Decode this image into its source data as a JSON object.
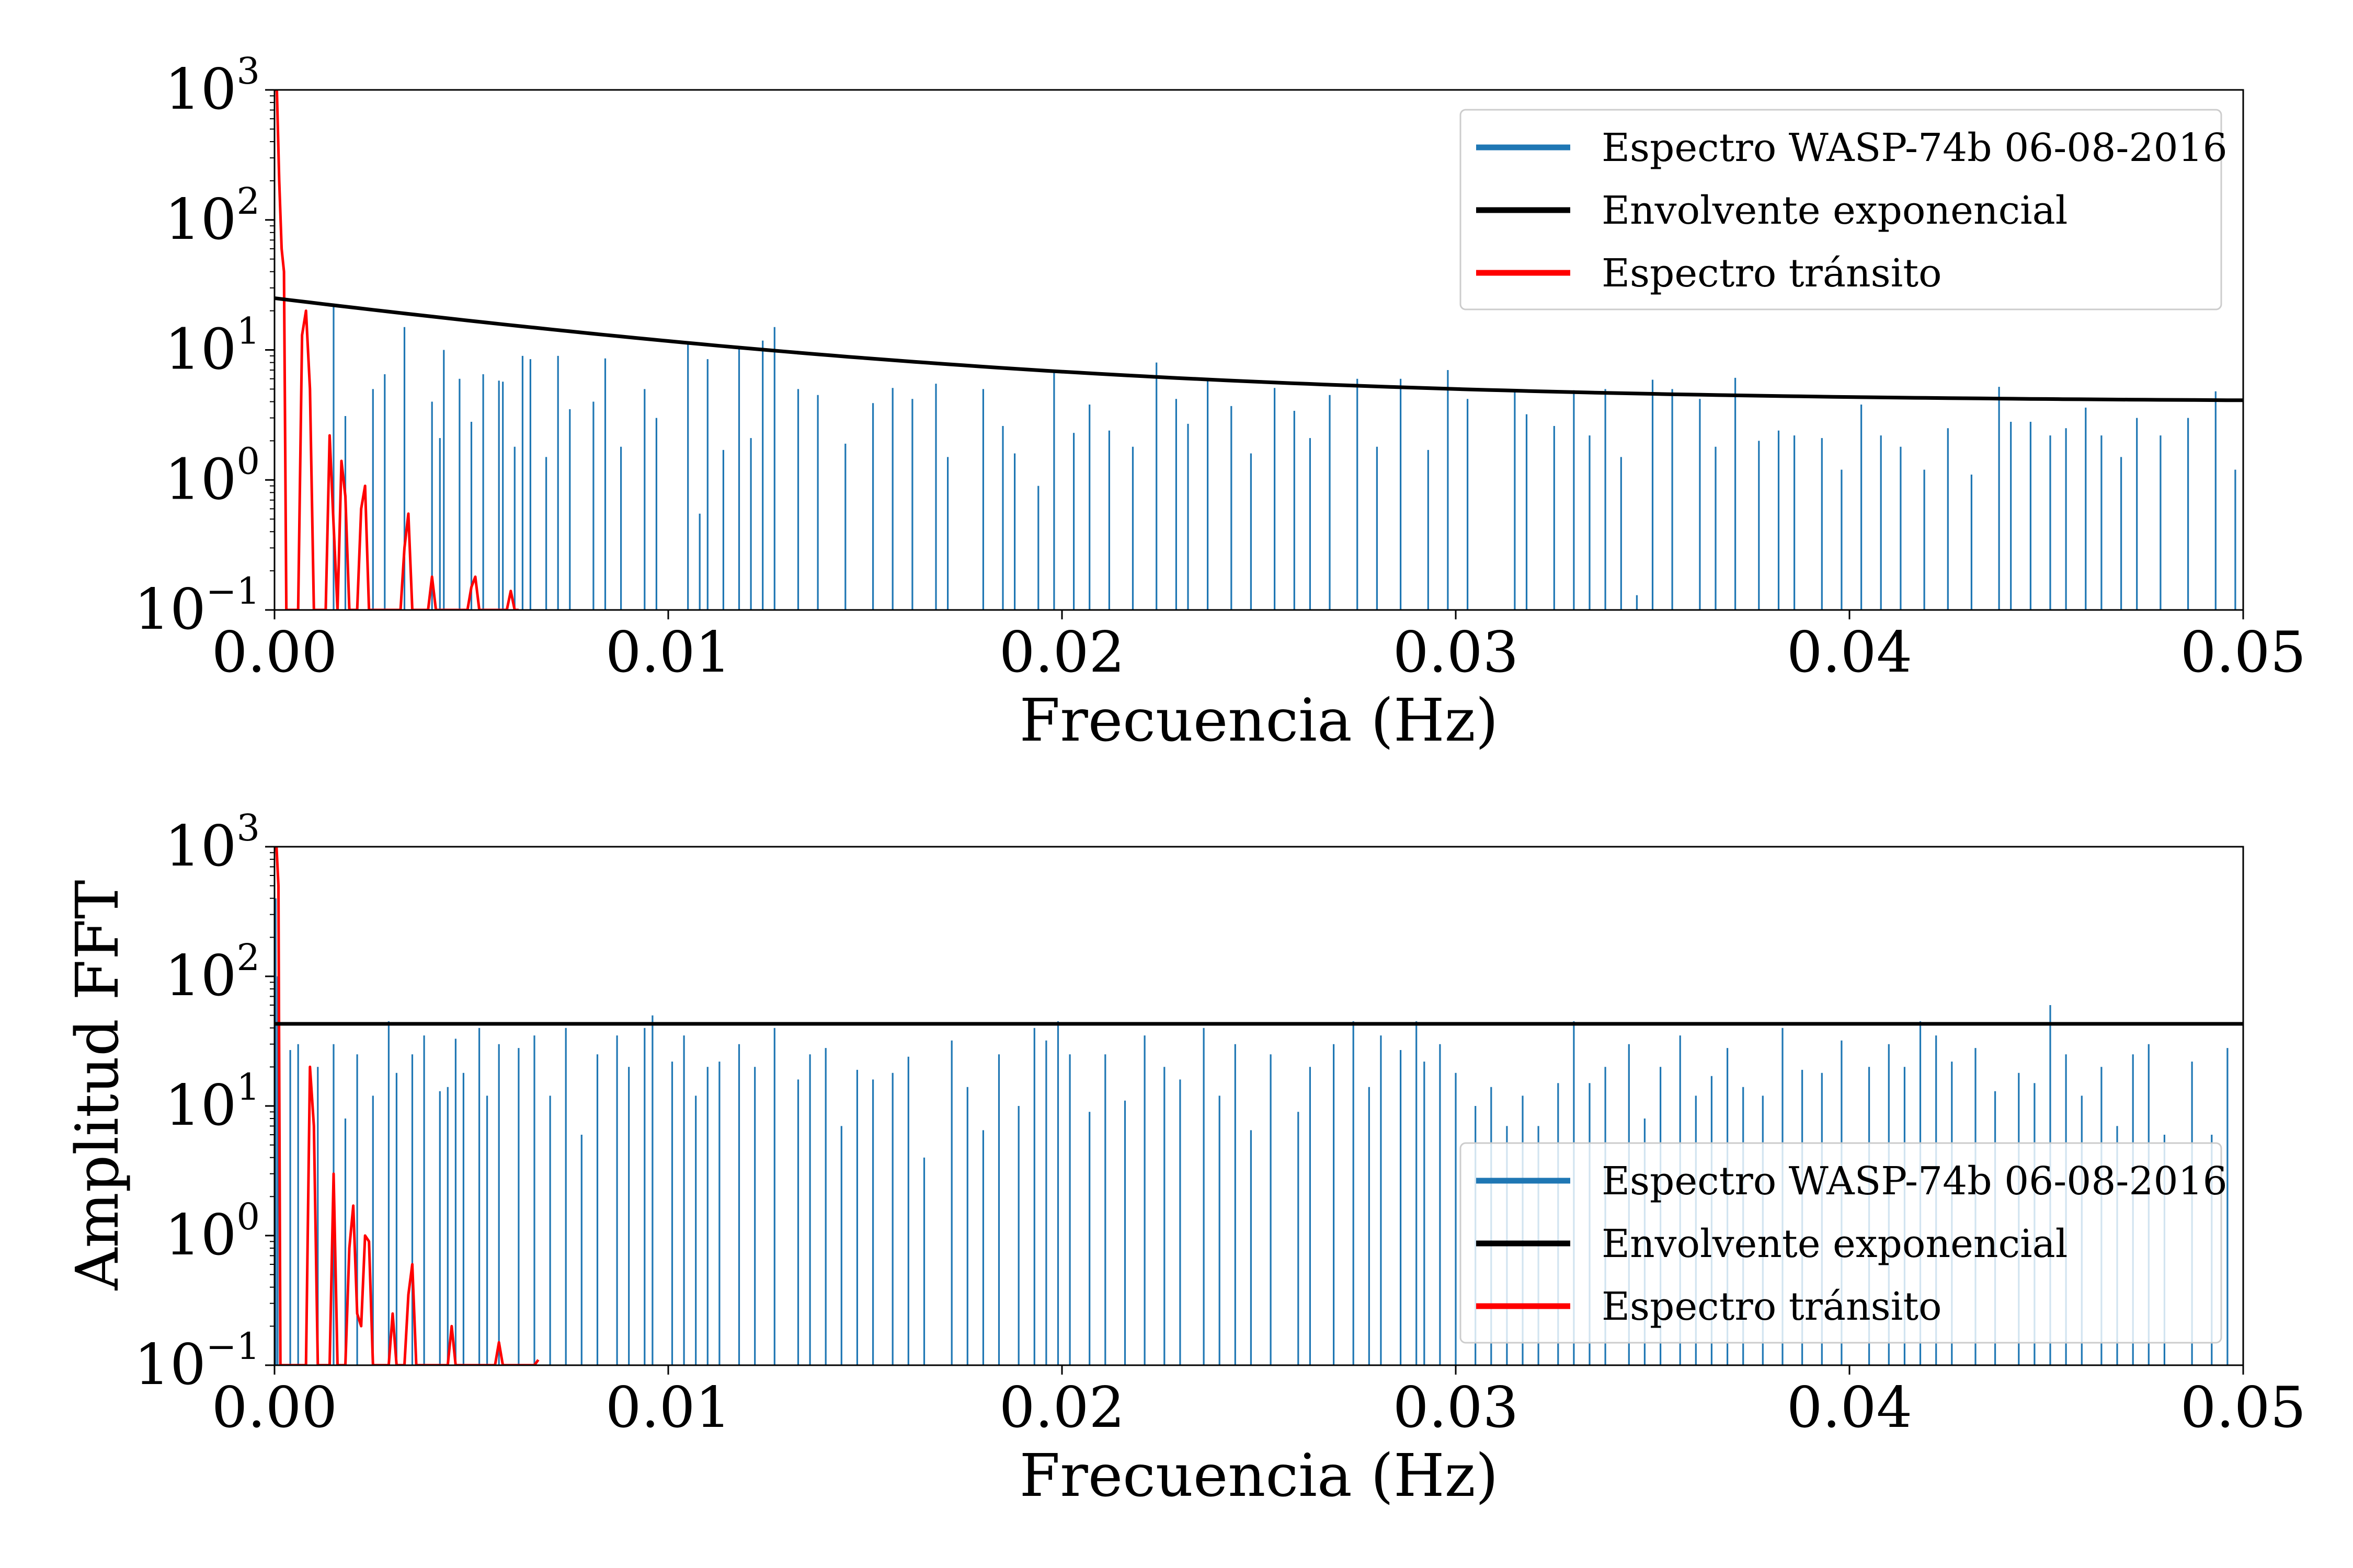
{
  "chart_data": [
    {
      "type": "line",
      "xlabel": "Frecuencia (Hz)",
      "ylabel": "",
      "xlim": [
        0,
        0.05
      ],
      "ylim": [
        0.1,
        1000
      ],
      "yscale": "log",
      "xticks": [
        {
          "value": 0.0,
          "label": "0.00"
        },
        {
          "value": 0.01,
          "label": "0.01"
        },
        {
          "value": 0.02,
          "label": "0.02"
        },
        {
          "value": 0.03,
          "label": "0.03"
        },
        {
          "value": 0.04,
          "label": "0.04"
        },
        {
          "value": 0.05,
          "label": "0.05"
        }
      ],
      "yticks": [
        {
          "value": 0.1,
          "base": "10",
          "exp": "−1"
        },
        {
          "value": 1,
          "base": "10",
          "exp": "0"
        },
        {
          "value": 10,
          "base": "10",
          "exp": "1"
        },
        {
          "value": 100,
          "base": "10",
          "exp": "2"
        },
        {
          "value": 1000,
          "base": "10",
          "exp": "3"
        }
      ],
      "legend": {
        "placement": "top-right",
        "semi_transparent": false
      },
      "envelope": {
        "type": "exponential",
        "y0": 25,
        "y_end": 4.1,
        "decay": 0.2
      },
      "series": [
        {
          "name": "Espectro WASP-74b   06-08-2016",
          "color": "#1f77b4",
          "kind": "spikes",
          "x": [
            0.0015,
            0.0018,
            0.0025,
            0.0028,
            0.0033,
            0.004,
            0.0042,
            0.0043,
            0.0047,
            0.005,
            0.0053,
            0.0057,
            0.0058,
            0.0061,
            0.0063,
            0.0065,
            0.0069,
            0.0072,
            0.0075,
            0.0081,
            0.0084,
            0.0088,
            0.0094,
            0.0097,
            0.0105,
            0.0108,
            0.011,
            0.0114,
            0.0118,
            0.0121,
            0.0124,
            0.0127,
            0.0133,
            0.0138,
            0.0145,
            0.0152,
            0.0157,
            0.0162,
            0.0168,
            0.0171,
            0.018,
            0.0185,
            0.0188,
            0.0194,
            0.0198,
            0.0203,
            0.0207,
            0.0212,
            0.0218,
            0.0224,
            0.0229,
            0.0232,
            0.0237,
            0.0243,
            0.0248,
            0.0254,
            0.0259,
            0.0263,
            0.0268,
            0.0275,
            0.028,
            0.0286,
            0.0293,
            0.0298,
            0.0303,
            0.0315,
            0.0318,
            0.0325,
            0.033,
            0.0334,
            0.0338,
            0.0342,
            0.0346,
            0.035,
            0.0355,
            0.0362,
            0.0366,
            0.0371,
            0.0377,
            0.0382,
            0.0386,
            0.0393,
            0.0398,
            0.0403,
            0.0408,
            0.0413,
            0.0419,
            0.0425,
            0.0431,
            0.0438,
            0.0441,
            0.0446,
            0.0451,
            0.0455,
            0.046,
            0.0464,
            0.0469,
            0.0473,
            0.0479,
            0.0486,
            0.0493,
            0.0498
          ],
          "values": [
            22,
            3.1,
            5,
            6.5,
            15,
            4,
            2.1,
            10,
            6,
            2.8,
            6.5,
            5.8,
            5.7,
            1.8,
            9,
            8.5,
            1.5,
            9,
            3.5,
            4,
            8.6,
            1.8,
            5,
            3,
            11,
            0.55,
            8.5,
            1.7,
            10.5,
            2.1,
            11.8,
            15,
            5,
            4.5,
            1.9,
            3.9,
            5.1,
            4.2,
            5.5,
            1.5,
            5,
            2.6,
            1.6,
            0.9,
            7,
            2.3,
            3.8,
            2.4,
            1.8,
            8,
            4.2,
            2.7,
            6.1,
            3.7,
            1.6,
            5.1,
            3.4,
            2.1,
            4.5,
            6,
            1.8,
            6,
            1.7,
            7,
            4.2,
            4.8,
            3.2,
            2.6,
            4.9,
            2.2,
            5,
            1.5,
            0.13,
            5.9,
            5,
            4.2,
            1.8,
            6.1,
            2,
            2.4,
            2.2,
            2.1,
            1.2,
            3.8,
            2.2,
            1.8,
            1.2,
            2.5,
            1.1,
            5.2,
            2.8,
            2.8,
            2.2,
            2.5,
            3.6,
            2.2,
            1.5,
            3,
            2.2,
            3,
            4.8,
            1.2
          ]
        },
        {
          "name": "Envolvente exponencial",
          "color": "#000000",
          "kind": "envelope"
        },
        {
          "name": "Espectro tránsito",
          "color": "#ff0000",
          "kind": "line",
          "x": [
            0.0,
            6e-05,
            0.00012,
            0.00018,
            0.00024,
            0.0003,
            0.0004,
            0.0005,
            0.0006,
            0.0007,
            0.0008,
            0.0009,
            0.001,
            0.0011,
            0.0012,
            0.0013,
            0.0014,
            0.0015,
            0.0016,
            0.0017,
            0.0018,
            0.0019,
            0.002,
            0.0021,
            0.0022,
            0.0023,
            0.0024,
            0.0025,
            0.0026,
            0.0027,
            0.0028,
            0.0029,
            0.003,
            0.0031,
            0.0032,
            0.0033,
            0.0034,
            0.0035,
            0.0036,
            0.0037,
            0.0038,
            0.0039,
            0.004,
            0.0041,
            0.0042,
            0.0043,
            0.0044,
            0.0045,
            0.0046,
            0.0047,
            0.0048,
            0.0049,
            0.005,
            0.0051,
            0.0052,
            0.0053,
            0.0054,
            0.0055,
            0.0056,
            0.0057,
            0.0058,
            0.0059,
            0.006,
            0.0061,
            0.0062
          ],
          "values": [
            1000,
            1000,
            200,
            60,
            40,
            0.1,
            0.1,
            0.1,
            0.1,
            13,
            20,
            5,
            0.1,
            0.1,
            0.1,
            0.1,
            2.2,
            0.45,
            0.1,
            1.4,
            0.75,
            0.1,
            0.1,
            0.1,
            0.6,
            0.9,
            0.1,
            0.1,
            0.1,
            0.1,
            0.1,
            0.1,
            0.1,
            0.1,
            0.1,
            0.3,
            0.55,
            0.1,
            0.1,
            0.1,
            0.1,
            0.1,
            0.18,
            0.1,
            0.1,
            0.1,
            0.1,
            0.1,
            0.1,
            0.1,
            0.1,
            0.1,
            0.15,
            0.18,
            0.1,
            0.1,
            0.1,
            0.1,
            0.1,
            0.1,
            0.1,
            0.1,
            0.14,
            0.1,
            0.1
          ]
        }
      ]
    },
    {
      "type": "line",
      "xlabel": "Frecuencia (Hz)",
      "ylabel": "Amplitud FFT",
      "xlim": [
        0,
        0.05
      ],
      "ylim": [
        0.1,
        1000
      ],
      "yscale": "log",
      "xticks": [
        {
          "value": 0.0,
          "label": "0.00"
        },
        {
          "value": 0.01,
          "label": "0.01"
        },
        {
          "value": 0.02,
          "label": "0.02"
        },
        {
          "value": 0.03,
          "label": "0.03"
        },
        {
          "value": 0.04,
          "label": "0.04"
        },
        {
          "value": 0.05,
          "label": "0.05"
        }
      ],
      "yticks": [
        {
          "value": 0.1,
          "base": "10",
          "exp": "−1"
        },
        {
          "value": 1,
          "base": "10",
          "exp": "0"
        },
        {
          "value": 10,
          "base": "10",
          "exp": "1"
        },
        {
          "value": 100,
          "base": "10",
          "exp": "2"
        },
        {
          "value": 1000,
          "base": "10",
          "exp": "3"
        }
      ],
      "legend": {
        "placement": "lower-right",
        "semi_transparent": true
      },
      "envelope": {
        "type": "constant",
        "y0": 43,
        "y_end": 43,
        "decay": 0
      },
      "series": [
        {
          "name": "Espectro WASP-74b   06-08-2016",
          "color": "#1f77b4",
          "kind": "spikes",
          "x": [
            3e-05,
            8e-05,
            0.0004,
            0.0006,
            0.0011,
            0.0015,
            0.0018,
            0.0021,
            0.0025,
            0.0029,
            0.0031,
            0.0035,
            0.0038,
            0.0042,
            0.0044,
            0.0046,
            0.0048,
            0.0052,
            0.0054,
            0.0057,
            0.0062,
            0.0066,
            0.007,
            0.0074,
            0.0078,
            0.0082,
            0.0087,
            0.009,
            0.0094,
            0.0096,
            0.0101,
            0.0104,
            0.0107,
            0.011,
            0.0113,
            0.0118,
            0.0122,
            0.0127,
            0.0133,
            0.0136,
            0.014,
            0.0144,
            0.0148,
            0.0152,
            0.0157,
            0.0161,
            0.0165,
            0.0172,
            0.0176,
            0.018,
            0.0184,
            0.0189,
            0.0193,
            0.0196,
            0.0199,
            0.0202,
            0.0207,
            0.0211,
            0.0216,
            0.0221,
            0.0226,
            0.023,
            0.0236,
            0.024,
            0.0244,
            0.0248,
            0.0253,
            0.026,
            0.0263,
            0.0269,
            0.0274,
            0.0278,
            0.0281,
            0.0286,
            0.029,
            0.0292,
            0.0296,
            0.03,
            0.0305,
            0.0309,
            0.0313,
            0.0317,
            0.0321,
            0.0326,
            0.033,
            0.0334,
            0.0338,
            0.0344,
            0.0348,
            0.0352,
            0.0357,
            0.0361,
            0.0365,
            0.0369,
            0.0373,
            0.0378,
            0.0383,
            0.0388,
            0.0393,
            0.0398,
            0.0405,
            0.041,
            0.0414,
            0.0418,
            0.0422,
            0.0426,
            0.0432,
            0.0437,
            0.0443,
            0.0447,
            0.0451,
            0.0455,
            0.0459,
            0.0464,
            0.0468,
            0.0472,
            0.0476,
            0.048,
            0.0487,
            0.0492,
            0.0496
          ],
          "values": [
            400,
            100,
            27,
            30,
            20,
            30,
            8,
            25,
            12,
            45,
            18,
            25,
            35,
            13,
            14,
            33,
            18,
            40,
            12,
            30,
            28,
            35,
            12,
            40,
            6,
            25,
            35,
            20,
            40,
            50,
            22,
            35,
            12,
            20,
            22,
            30,
            20,
            40,
            16,
            25,
            28,
            7,
            19,
            16,
            18,
            24,
            4,
            32,
            14,
            6.5,
            25,
            10,
            40,
            32,
            45,
            25,
            9,
            25,
            11,
            35,
            20,
            16,
            40,
            12,
            30,
            6.5,
            25,
            9,
            20,
            30,
            45,
            14,
            35,
            27,
            45,
            22,
            30,
            18,
            10,
            14,
            7,
            12,
            7,
            15,
            45,
            15,
            20,
            30,
            8,
            20,
            35,
            12,
            17,
            28,
            14,
            12,
            40,
            19,
            18,
            32,
            20,
            30,
            20,
            45,
            35,
            22,
            28,
            13,
            18,
            15,
            60,
            25,
            12,
            20,
            7,
            25,
            30,
            6,
            22,
            6,
            28
          ]
        },
        {
          "name": "Envolvente exponencial",
          "color": "#000000",
          "kind": "envelope"
        },
        {
          "name": "Espectro tránsito",
          "color": "#ff0000",
          "kind": "line",
          "x": [
            0.0,
            5e-05,
            0.0001,
            0.00015,
            0.0002,
            0.0003,
            0.0004,
            0.0005,
            0.0006,
            0.0007,
            0.0008,
            0.0009,
            0.001,
            0.0011,
            0.0012,
            0.0013,
            0.0014,
            0.0015,
            0.0016,
            0.0017,
            0.0018,
            0.0019,
            0.002,
            0.0021,
            0.0022,
            0.0023,
            0.0024,
            0.0025,
            0.0026,
            0.0027,
            0.0028,
            0.0029,
            0.003,
            0.0031,
            0.0032,
            0.0033,
            0.0034,
            0.0035,
            0.0036,
            0.0037,
            0.0038,
            0.0039,
            0.004,
            0.0041,
            0.0042,
            0.0043,
            0.0044,
            0.0045,
            0.0046,
            0.0047,
            0.0048,
            0.0049,
            0.005,
            0.0051,
            0.0052,
            0.0053,
            0.0054,
            0.0055,
            0.0056,
            0.0057,
            0.0058,
            0.0059,
            0.006,
            0.0061,
            0.0062,
            0.0063,
            0.0064,
            0.0065,
            0.0066,
            0.0067
          ],
          "values": [
            1000,
            1000,
            500,
            0.1,
            0.1,
            0.1,
            0.1,
            0.1,
            0.1,
            0.1,
            0.1,
            20,
            7,
            0.1,
            0.1,
            0.1,
            0.1,
            3,
            0.1,
            0.1,
            0.1,
            0.8,
            1.7,
            0.25,
            0.2,
            1.0,
            0.9,
            0.1,
            0.1,
            0.1,
            0.1,
            0.1,
            0.25,
            0.1,
            0.1,
            0.1,
            0.35,
            0.6,
            0.1,
            0.1,
            0.1,
            0.1,
            0.1,
            0.1,
            0.1,
            0.1,
            0.1,
            0.2,
            0.1,
            0.1,
            0.1,
            0.1,
            0.1,
            0.1,
            0.1,
            0.1,
            0.1,
            0.1,
            0.1,
            0.15,
            0.1,
            0.1,
            0.1,
            0.1,
            0.1,
            0.1,
            0.1,
            0.1,
            0.1,
            0.11
          ]
        }
      ]
    }
  ]
}
